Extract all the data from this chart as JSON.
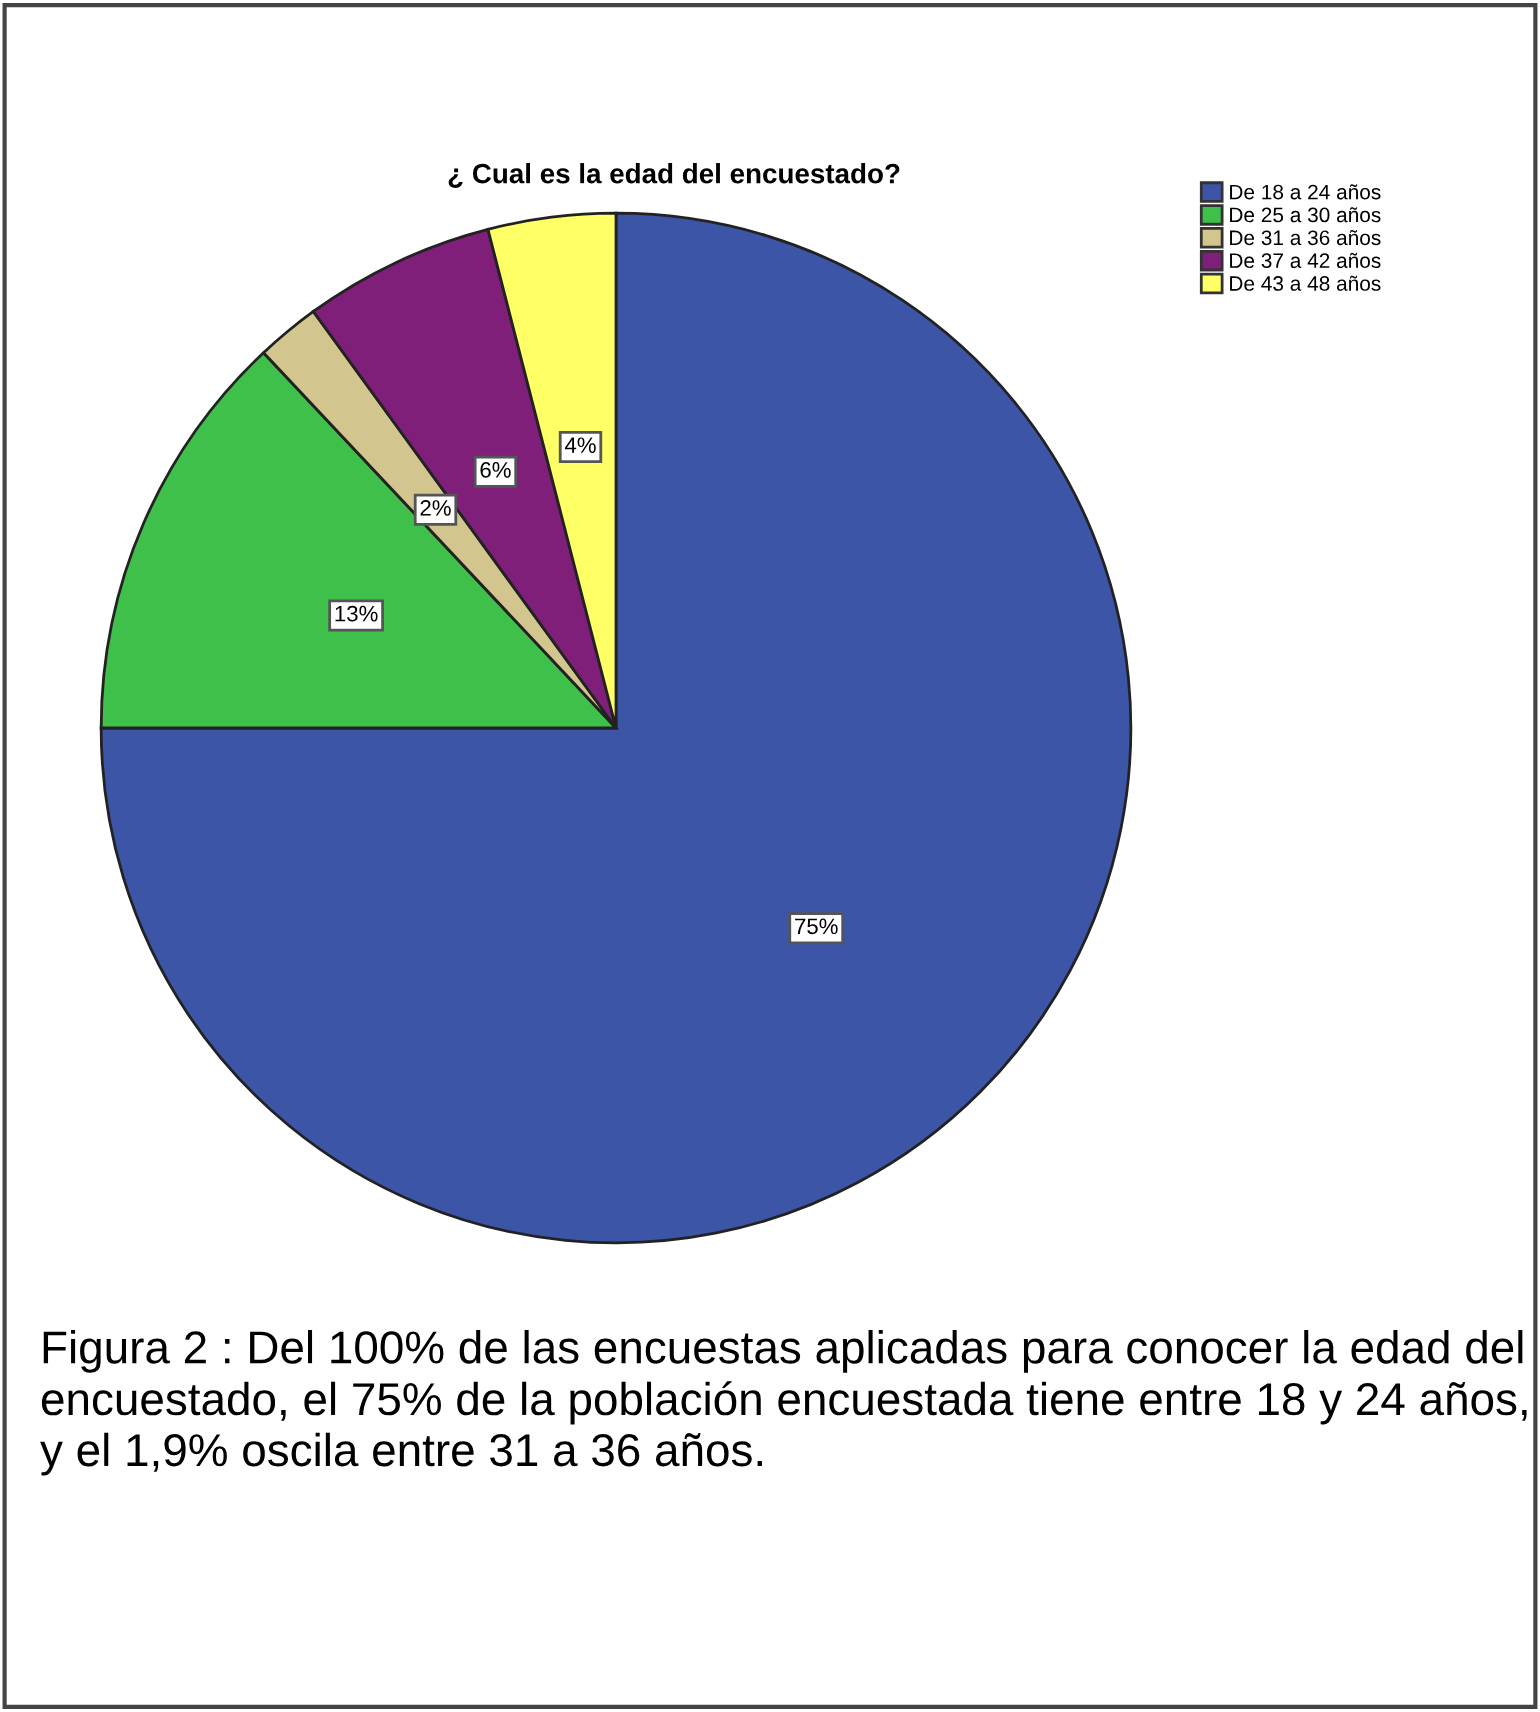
{
  "chart_data": {
    "type": "pie",
    "title": "¿ Cual es la edad del encuestado?",
    "categories": [
      "De 18 a 24 años",
      "De 25 a 30 años",
      "De 31 a 36 años",
      "De 37 a 42 años",
      "De 43 a 48 años"
    ],
    "values": [
      75,
      13,
      2,
      6,
      4
    ],
    "colors": [
      "#3d55a6",
      "#3ec04a",
      "#d2c58e",
      "#7f1f7a",
      "#ffff66"
    ],
    "value_labels": [
      "75%",
      "13%",
      "2%",
      "6%",
      "4%"
    ],
    "legend": "top right",
    "annotations": [
      "Figura 2 : Del 100% de las encuestas aplicadas para conocer la edad del encuestado, el 75% de la población encuestada tiene entre 18 y 24 años, y el 1,9% oscila entre 31 a 36 años."
    ]
  }
}
